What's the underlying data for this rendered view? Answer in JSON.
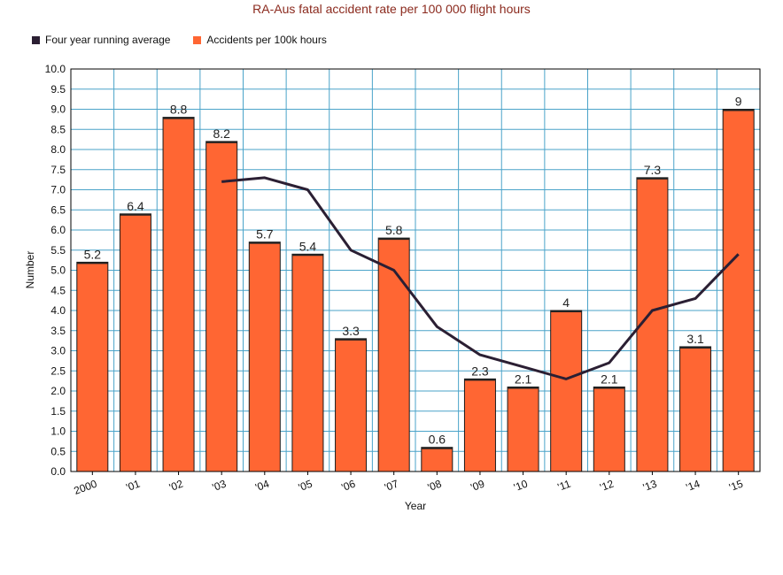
{
  "chart_data": {
    "type": "bar",
    "title": "RA-Aus fatal accident rate per 100 000 flight hours",
    "xlabel": "Year",
    "ylabel": "Number",
    "categories": [
      "2000",
      "'01",
      "'02",
      "'03",
      "'04",
      "'05",
      "'06",
      "'07",
      "'08",
      "'09",
      "'10",
      "'11",
      "'12",
      "'13",
      "'14",
      "'15"
    ],
    "ylim": [
      0,
      10
    ],
    "yticks": [
      "0.0",
      "0.5",
      "1.0",
      "1.5",
      "2.0",
      "2.5",
      "3.0",
      "3.5",
      "4.0",
      "4.5",
      "5.0",
      "5.5",
      "6.0",
      "6.5",
      "7.0",
      "7.5",
      "8.0",
      "8.5",
      "9.0",
      "9.5",
      "10.0"
    ],
    "grid": true,
    "legend_position": "top-left",
    "series": [
      {
        "name": "Accidents per 100k hours",
        "kind": "bar",
        "color": "#ff6633",
        "values": [
          5.2,
          6.4,
          8.8,
          8.2,
          5.7,
          5.4,
          3.3,
          5.8,
          0.6,
          2.3,
          2.1,
          4,
          2.1,
          7.3,
          3.1,
          9
        ],
        "labels": [
          "5.2",
          "6.4",
          "8.8",
          "8.2",
          "5.7",
          "5.4",
          "3.3",
          "5.8",
          "0.6",
          "2.3",
          "2.1",
          "4",
          "2.1",
          "7.3",
          "3.1",
          "9"
        ]
      },
      {
        "name": "Four year running average",
        "kind": "line",
        "color": "#2b1f33",
        "values": [
          null,
          null,
          null,
          7.2,
          7.3,
          7.0,
          5.5,
          5.0,
          3.6,
          2.9,
          2.6,
          2.3,
          2.7,
          4.0,
          4.3,
          5.4
        ]
      }
    ],
    "colors": {
      "grid": "#4aa3c9",
      "title": "#8b2a1e",
      "axis": "#000000"
    }
  }
}
